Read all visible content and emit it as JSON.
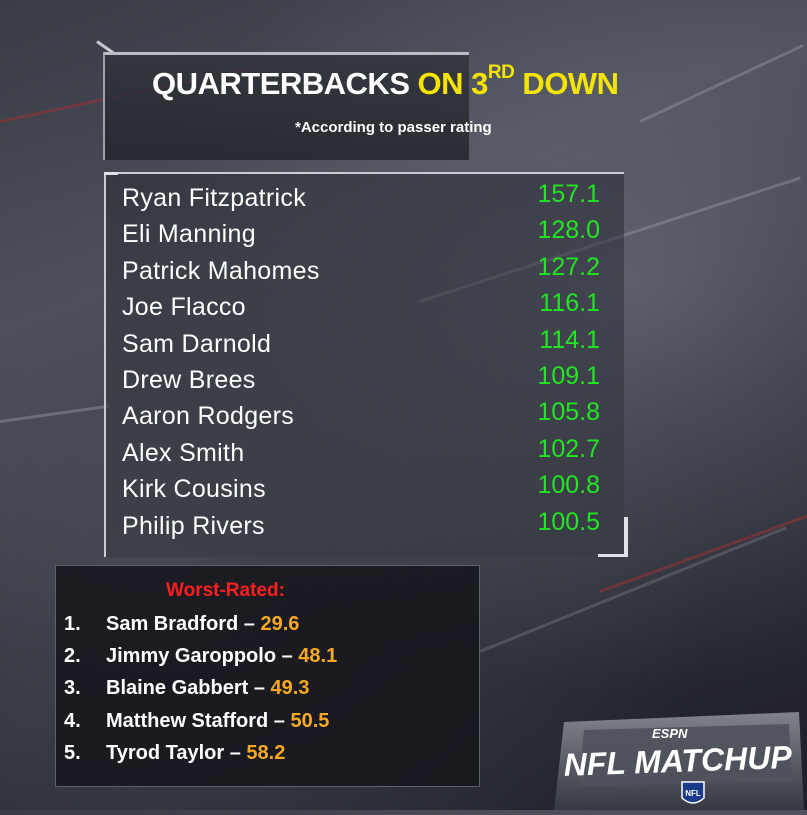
{
  "title": {
    "part1": "QUARTERBACKS",
    "part2_prefix": "ON 3",
    "part2_sup": "RD",
    "part2_suffix": " DOWN",
    "subtitle": "*According to passer rating"
  },
  "top_quarterbacks": [
    {
      "name": "Ryan Fitzpatrick",
      "rating": "157.1"
    },
    {
      "name": "Eli Manning",
      "rating": "128.0"
    },
    {
      "name": "Patrick Mahomes",
      "rating": "127.2"
    },
    {
      "name": "Joe Flacco",
      "rating": "116.1"
    },
    {
      "name": "Sam Darnold",
      "rating": "114.1"
    },
    {
      "name": "Drew Brees",
      "rating": "109.1"
    },
    {
      "name": "Aaron Rodgers",
      "rating": "105.8"
    },
    {
      "name": "Alex Smith",
      "rating": "102.7"
    },
    {
      "name": "Kirk Cousins",
      "rating": "100.8"
    },
    {
      "name": "Philip Rivers",
      "rating": "100.5"
    }
  ],
  "worst": {
    "heading": "Worst-Rated:",
    "items": [
      {
        "rank": "1.",
        "name": "Sam Bradford",
        "rating": "29.6"
      },
      {
        "rank": "2.",
        "name": "Jimmy Garoppolo",
        "rating": "48.1"
      },
      {
        "rank": "3.",
        "name": "Blaine Gabbert",
        "rating": "49.3"
      },
      {
        "rank": "4.",
        "name": "Matthew Stafford",
        "rating": "50.5"
      },
      {
        "rank": "5.",
        "name": "Tyrod Taylor",
        "rating": "58.2"
      }
    ],
    "separator": " – "
  },
  "logo": {
    "network": "ESPN",
    "show": "NFL MATCHUP",
    "badge": "NFL"
  },
  "colors": {
    "title_white": "#ffffff",
    "title_yellow": "#f5e400",
    "rating_green": "#22e622",
    "worst_heading_red": "#ff1e1e",
    "worst_value_orange": "#f7a824"
  }
}
